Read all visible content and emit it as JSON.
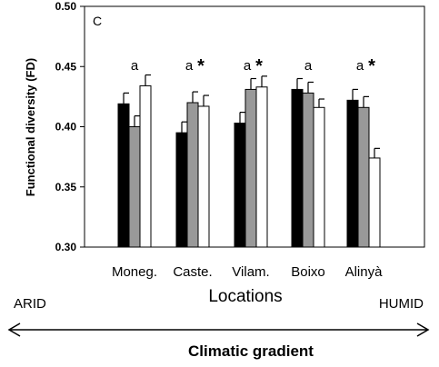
{
  "panel_letter": "C",
  "chart_data": {
    "type": "bar",
    "title": "",
    "ylabel": "Functional diversity (FD)",
    "xlabel": "Locations",
    "ylim": [
      0.3,
      0.5
    ],
    "yticks": [
      "0.30",
      "0.35",
      "0.40",
      "0.45",
      "0.50"
    ],
    "grid": false,
    "categories": [
      "Moneg.",
      "Caste.",
      "Vilam.",
      "Boixo",
      "Alinyà"
    ],
    "series": [
      {
        "color": "#000000",
        "values": [
          0.419,
          0.395,
          0.403,
          0.431,
          0.422
        ],
        "errors": [
          0.009,
          0.009,
          0.009,
          0.009,
          0.009
        ]
      },
      {
        "color": "#999999",
        "values": [
          0.4,
          0.42,
          0.431,
          0.428,
          0.416
        ],
        "errors": [
          0.009,
          0.009,
          0.009,
          0.009,
          0.009
        ]
      },
      {
        "color": "#ffffff",
        "values": [
          0.434,
          0.417,
          0.433,
          0.416,
          0.374
        ],
        "errors": [
          0.009,
          0.009,
          0.009,
          0.007,
          0.008
        ]
      }
    ],
    "annotations": [
      {
        "category": "Moneg.",
        "letter": "a",
        "star": ""
      },
      {
        "category": "Caste.",
        "letter": "a",
        "star": "*"
      },
      {
        "category": "Vilam.",
        "letter": "a",
        "star": "*"
      },
      {
        "category": "Boixo",
        "letter": "a",
        "star": ""
      },
      {
        "category": "Alinyà",
        "letter": "a",
        "star": "*"
      }
    ]
  },
  "gradient": {
    "left_label": "ARID",
    "right_label": "HUMID",
    "title": "Climatic gradient"
  }
}
